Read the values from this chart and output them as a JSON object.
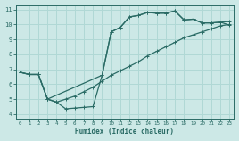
{
  "xlabel": "Humidex (Indice chaleur)",
  "bg_color": "#cce8e6",
  "grid_color": "#b0d8d5",
  "line_color": "#2a6b65",
  "xlim": [
    -0.5,
    23.5
  ],
  "ylim": [
    3.7,
    11.3
  ],
  "yticks": [
    4,
    5,
    6,
    7,
    8,
    9,
    10,
    11
  ],
  "xticks": [
    0,
    1,
    2,
    3,
    4,
    5,
    6,
    7,
    8,
    9,
    10,
    11,
    12,
    13,
    14,
    15,
    16,
    17,
    18,
    19,
    20,
    21,
    22,
    23
  ],
  "line1_x": [
    0,
    1,
    2,
    3,
    4,
    5,
    6,
    7,
    8,
    9,
    10,
    11,
    12,
    13,
    14,
    15,
    16,
    17,
    18,
    19,
    20,
    21,
    22,
    23
  ],
  "line1_y": [
    6.8,
    6.65,
    6.65,
    5.0,
    4.8,
    4.35,
    4.4,
    4.45,
    4.5,
    6.6,
    9.5,
    9.8,
    10.5,
    10.6,
    10.8,
    10.75,
    10.75,
    10.9,
    10.3,
    10.35,
    10.1,
    10.1,
    10.15,
    10.2
  ],
  "line2_x": [
    0,
    1,
    2,
    3,
    4,
    5,
    6,
    7,
    8,
    9,
    10,
    11,
    12,
    13,
    14,
    15,
    16,
    17,
    18,
    19,
    20,
    21,
    22,
    23
  ],
  "line2_y": [
    6.8,
    6.65,
    6.65,
    5.0,
    4.8,
    5.0,
    5.2,
    5.5,
    5.8,
    6.2,
    6.6,
    6.9,
    7.2,
    7.5,
    7.9,
    8.2,
    8.5,
    8.8,
    9.1,
    9.3,
    9.5,
    9.7,
    9.9,
    10.0
  ],
  "line3_x": [
    0,
    1,
    2,
    3,
    9,
    10,
    11,
    12,
    13,
    14,
    15,
    16,
    17,
    18,
    19,
    20,
    21,
    22,
    23
  ],
  "line3_y": [
    6.8,
    6.65,
    6.65,
    5.0,
    6.6,
    9.5,
    9.8,
    10.5,
    10.6,
    10.8,
    10.75,
    10.75,
    10.9,
    10.3,
    10.35,
    10.1,
    10.1,
    10.15,
    9.95
  ]
}
